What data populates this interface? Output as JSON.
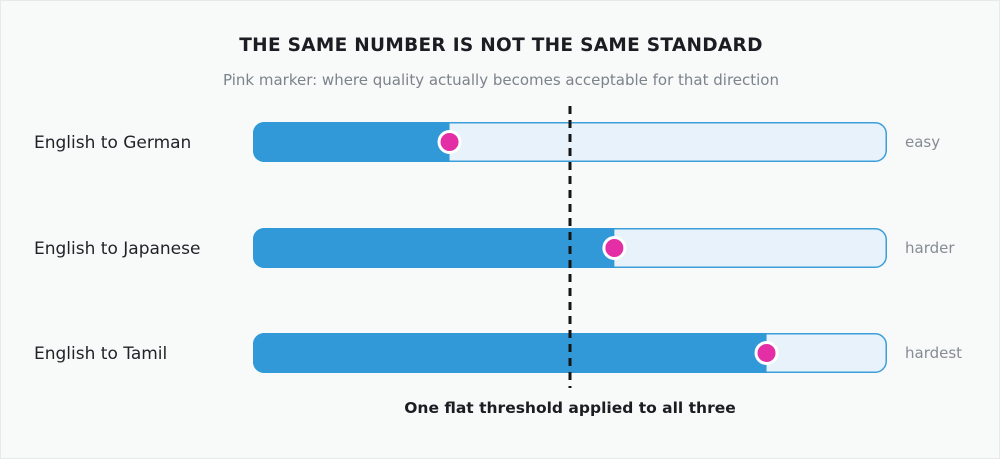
{
  "chart_data": {
    "type": "bar",
    "title": "THE SAME NUMBER IS NOT THE SAME STANDARD",
    "subtitle": "Pink marker: where quality actually becomes acceptable for that direction",
    "categories": [
      "English to German",
      "English to Japanese",
      "English to Tamil"
    ],
    "values": [
      0.31,
      0.57,
      0.81
    ],
    "difficulty_labels": [
      "easy",
      "harder",
      "hardest"
    ],
    "xlim": [
      0,
      1
    ],
    "threshold": {
      "value": 0.5,
      "label": "One flat threshold applied to all three"
    },
    "colors": {
      "fill": "#3199d7",
      "track": "#e7f2fb",
      "track_border": "#3d9fd9",
      "marker": "#e32ea6",
      "threshold_line": "#151515"
    }
  }
}
